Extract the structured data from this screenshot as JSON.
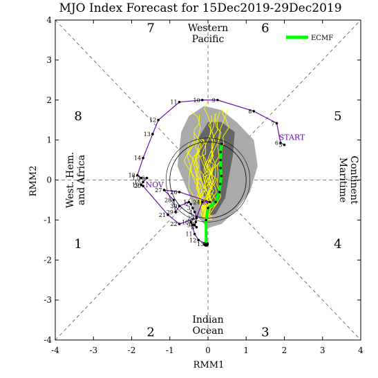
{
  "chart_data": {
    "type": "line",
    "title": "MJO Index Forecast for 15Dec2019-29Dec2019",
    "xlabel": "RMM1",
    "ylabel": "RMM2",
    "xlim": [
      -4,
      4
    ],
    "ylim": [
      -4,
      4
    ],
    "xticks": [
      "-4",
      "-3",
      "-2",
      "-1",
      "0",
      "1",
      "2",
      "3",
      "4"
    ],
    "yticks": [
      "-4",
      "-3",
      "-2",
      "-1",
      "0",
      "1",
      "2",
      "3",
      "4"
    ],
    "legend": {
      "label": "ECMF",
      "placement": "top-right"
    },
    "phases": [
      {
        "label": "1",
        "x": -3.4,
        "y": -1.6
      },
      {
        "label": "2",
        "x": -1.5,
        "y": -3.8
      },
      {
        "label": "3",
        "x": 1.5,
        "y": -3.8
      },
      {
        "label": "4",
        "x": 3.4,
        "y": -1.6
      },
      {
        "label": "5",
        "x": 3.4,
        "y": 1.6
      },
      {
        "label": "6",
        "x": 1.5,
        "y": 3.8
      },
      {
        "label": "7",
        "x": -1.5,
        "y": 3.8
      },
      {
        "label": "8",
        "x": -3.4,
        "y": 1.6
      }
    ],
    "regions": {
      "top": [
        "Western",
        "Pacific"
      ],
      "bottom": [
        "Indian",
        "Ocean"
      ],
      "left": [
        "West. Hem.",
        "and Africa"
      ],
      "right": [
        "Maritime",
        "Continent"
      ]
    },
    "annotations": [
      {
        "text": "START",
        "x": 2.2,
        "y": 1.0
      },
      {
        "text": "NOV",
        "x": -1.4,
        "y": -0.18
      }
    ],
    "observed": [
      {
        "label": "5",
        "x": 2.0,
        "y": 0.88
      },
      {
        "label": "6",
        "x": 1.9,
        "y": 0.93
      },
      {
        "label": "7",
        "x": 1.8,
        "y": 1.42
      },
      {
        "label": "8",
        "x": 1.2,
        "y": 1.72
      },
      {
        "label": "9",
        "x": 0.25,
        "y": 2.0
      },
      {
        "label": "10",
        "x": -0.15,
        "y": 2.0
      },
      {
        "label": "11",
        "x": -0.75,
        "y": 1.95
      },
      {
        "label": "12",
        "x": -1.3,
        "y": 1.5
      },
      {
        "label": "13",
        "x": -1.45,
        "y": 1.15
      },
      {
        "label": "14",
        "x": -1.7,
        "y": 0.55
      },
      {
        "label": "18",
        "x": -1.85,
        "y": 0.12
      },
      {
        "label": "17",
        "x": -1.75,
        "y": 0.05
      },
      {
        "label": "16",
        "x": -1.6,
        "y": 0.05
      },
      {
        "label": "15",
        "x": -1.7,
        "y": -0.05
      },
      {
        "label": "19",
        "x": -1.75,
        "y": -0.12
      },
      {
        "label": "20",
        "x": -1.7,
        "y": -0.15
      },
      {
        "label": "21",
        "x": -1.05,
        "y": -0.87
      },
      {
        "label": "22",
        "x": -0.75,
        "y": -1.1
      },
      {
        "label": "23",
        "x": -0.3,
        "y": -0.95
      },
      {
        "label": "24",
        "x": -0.15,
        "y": -0.55
      },
      {
        "label": "25",
        "x": 0.05,
        "y": -0.55
      },
      {
        "label": "26",
        "x": -0.75,
        "y": -0.3
      },
      {
        "label": "27",
        "x": -1.15,
        "y": -0.25
      },
      {
        "label": "28",
        "x": -0.9,
        "y": -0.5
      },
      {
        "label": "29",
        "x": -0.85,
        "y": -0.8
      },
      {
        "label": "30",
        "x": -0.75,
        "y": -0.65
      },
      {
        "label": "1",
        "x": -0.5,
        "y": -0.55
      },
      {
        "label": "2",
        "x": -0.45,
        "y": -0.6
      },
      {
        "label": "3",
        "x": -0.4,
        "y": -0.7
      },
      {
        "label": "4",
        "x": -0.35,
        "y": -0.8
      },
      {
        "label": "5",
        "x": -0.3,
        "y": -0.92
      },
      {
        "label": "6",
        "x": -0.32,
        "y": -1.05
      },
      {
        "label": "7",
        "x": -0.35,
        "y": -1.12
      },
      {
        "label": "8",
        "x": -0.3,
        "y": -1.18
      },
      {
        "label": "9",
        "x": -0.4,
        "y": -1.12
      },
      {
        "label": "10",
        "x": -0.45,
        "y": -1.05
      },
      {
        "label": "11",
        "x": -0.35,
        "y": -1.35
      },
      {
        "label": "12",
        "x": -0.25,
        "y": -1.5
      },
      {
        "label": "13",
        "x": -0.05,
        "y": -1.6
      }
    ],
    "ensemble_mean": [
      {
        "x": -0.05,
        "y": -1.6
      },
      {
        "x": -0.05,
        "y": -1.0
      },
      {
        "x": 0.0,
        "y": -0.7
      },
      {
        "x": 0.2,
        "y": -0.55
      },
      {
        "x": 0.3,
        "y": -0.3
      },
      {
        "x": 0.32,
        "y": -0.1
      },
      {
        "x": 0.35,
        "y": 0.1
      },
      {
        "x": 0.33,
        "y": 0.3
      },
      {
        "x": 0.33,
        "y": 0.5
      },
      {
        "x": 0.33,
        "y": 0.7
      },
      {
        "x": 0.36,
        "y": 0.9
      }
    ],
    "colors": {
      "observed": "#6a0dad",
      "ensemble": "#ffff00",
      "mean": "#00ff00",
      "dark_spread": "#666666",
      "light_spread": "#aaaaaa"
    }
  }
}
